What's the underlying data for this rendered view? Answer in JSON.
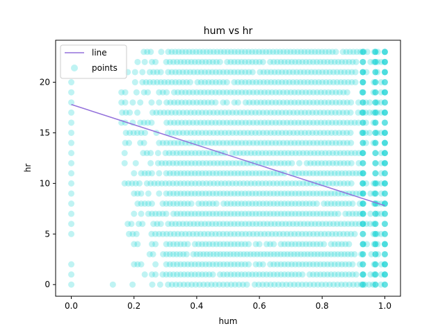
{
  "chart_data": {
    "type": "scatter",
    "title": "hum vs hr",
    "xlabel": "hum",
    "ylabel": "hr",
    "xlim": [
      -0.05,
      1.05
    ],
    "ylim": [
      -1.15,
      24.15
    ],
    "x_ticks": [
      "0.0",
      "0.2",
      "0.4",
      "0.6",
      "0.8",
      "1.0"
    ],
    "y_ticks": [
      "0",
      "5",
      "10",
      "15",
      "20"
    ],
    "legend": {
      "placement": "upper-left",
      "entries": [
        "line",
        "points"
      ]
    },
    "grid": false,
    "series": [
      {
        "name": "line",
        "type": "line",
        "color": "#9370DB",
        "x": [
          0.0,
          1.0
        ],
        "y": [
          17.8,
          7.8
        ]
      },
      {
        "name": "points",
        "type": "scatter",
        "color": "#00CED1",
        "alpha": 0.25,
        "hours": [
          0,
          1,
          2,
          3,
          4,
          5,
          6,
          7,
          8,
          9,
          10,
          11,
          12,
          13,
          14,
          15,
          16,
          17,
          18,
          19,
          20,
          21,
          22,
          23
        ],
        "hum_range_by_hour": [
          [
            0.12,
            1.0
          ],
          [
            0.2,
            1.0
          ],
          [
            0.2,
            1.0
          ],
          [
            0.25,
            1.0
          ],
          [
            0.2,
            1.0
          ],
          [
            0.16,
            1.0
          ],
          [
            0.18,
            1.0
          ],
          [
            0.2,
            1.0
          ],
          [
            0.2,
            1.0
          ],
          [
            0.2,
            1.0
          ],
          [
            0.17,
            1.0
          ],
          [
            0.2,
            1.0
          ],
          [
            0.17,
            1.0
          ],
          [
            0.17,
            1.0
          ],
          [
            0.16,
            1.0
          ],
          [
            0.15,
            1.0
          ],
          [
            0.16,
            1.0
          ],
          [
            0.15,
            1.0
          ],
          [
            0.16,
            1.0
          ],
          [
            0.16,
            1.0
          ],
          [
            0.18,
            1.0
          ],
          [
            0.18,
            1.0
          ],
          [
            0.2,
            1.0
          ],
          [
            0.22,
            1.0
          ]
        ],
        "hum_zero_hours": [
          0,
          1,
          2,
          5,
          6,
          7,
          8,
          9,
          10,
          11,
          12,
          13,
          14,
          15,
          16,
          17,
          18,
          19,
          20
        ]
      }
    ]
  }
}
